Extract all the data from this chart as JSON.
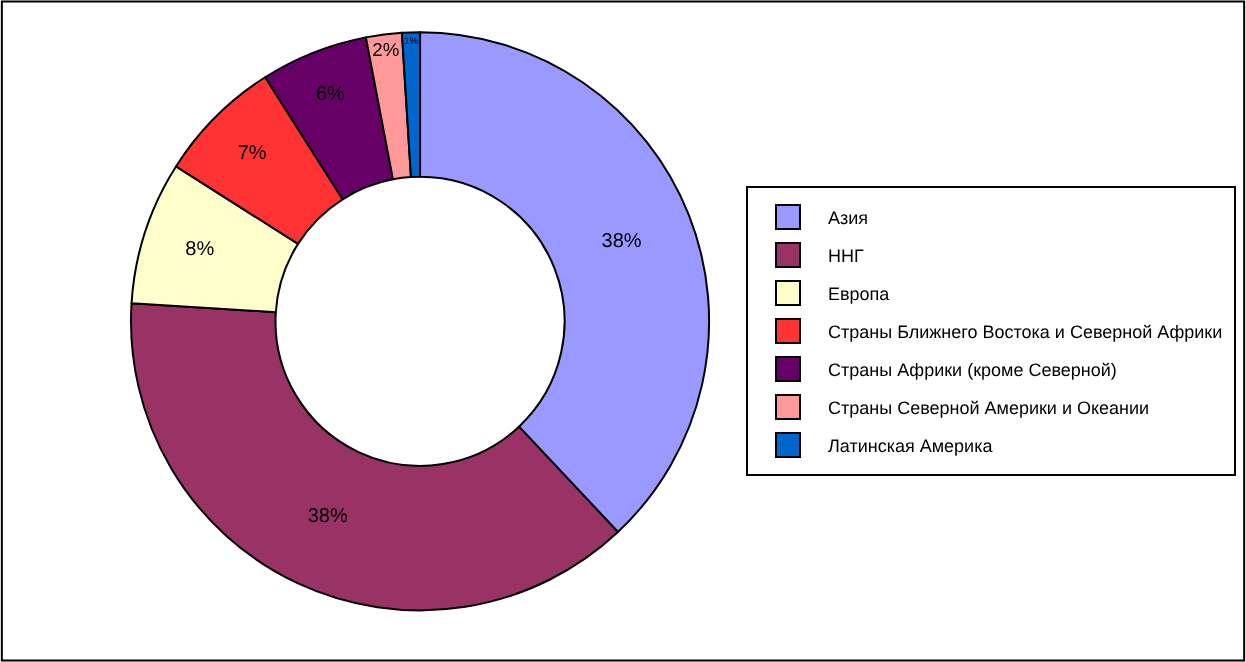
{
  "chart_data": {
    "type": "donut",
    "categories": [
      "Азия",
      "ННГ",
      "Европа",
      "Страны Ближнего Востока и Северной Африки",
      "Страны Африки (кроме Северной)",
      "Страны Северной Америки и Океании",
      "Латинская Америка"
    ],
    "values": [
      38,
      38,
      8,
      7,
      6,
      2,
      1
    ],
    "value_labels": [
      "38%",
      "38%",
      "8%",
      "7%",
      "6%",
      "2%",
      "1%"
    ],
    "colors": [
      "#9999ff",
      "#993366",
      "#ffffcc",
      "#ff3333",
      "#660066",
      "#ff9999",
      "#0066cc"
    ],
    "legend": "right"
  }
}
